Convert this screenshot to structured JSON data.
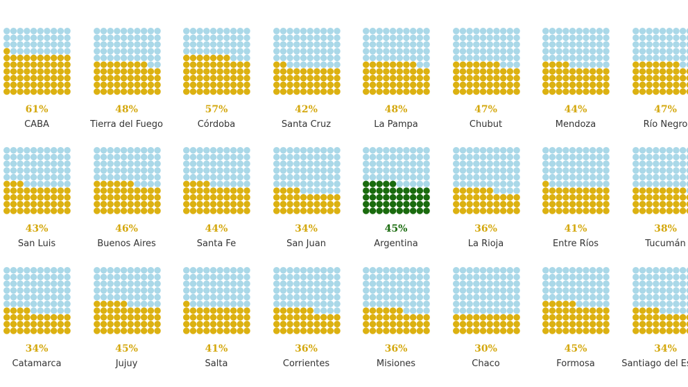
{
  "colors": {
    "empty": "#aad8e8",
    "filled": "#dcb111",
    "highlight": "#1a6b0e",
    "label_default": "#d4a80f",
    "label_highlight": "#1a6b0e",
    "name": "#333333"
  },
  "chart_data": {
    "type": "waffle",
    "grid": "10x10",
    "units": "percent",
    "title": "",
    "items": [
      {
        "name": "CABA",
        "value": 61,
        "label": "61%"
      },
      {
        "name": "Tierra del Fuego",
        "value": 48,
        "label": "48%"
      },
      {
        "name": "Córdoba",
        "value": 57,
        "label": "57%"
      },
      {
        "name": "Santa Cruz",
        "value": 42,
        "label": "42%"
      },
      {
        "name": "La Pampa",
        "value": 48,
        "label": "48%"
      },
      {
        "name": "Chubut",
        "value": 47,
        "label": "47%"
      },
      {
        "name": "Mendoza",
        "value": 44,
        "label": "44%"
      },
      {
        "name": "Río Negro",
        "value": 47,
        "label": "47%"
      },
      {
        "name": "San Luis",
        "value": 43,
        "label": "43%"
      },
      {
        "name": "Buenos Aires",
        "value": 46,
        "label": "46%"
      },
      {
        "name": "Santa Fe",
        "value": 44,
        "label": "44%"
      },
      {
        "name": "San Juan",
        "value": 34,
        "label": "34%"
      },
      {
        "name": "Argentina",
        "value": 45,
        "label": "45%",
        "highlight": true
      },
      {
        "name": "La Rioja",
        "value": 36,
        "label": "36%"
      },
      {
        "name": "Entre Ríos",
        "value": 41,
        "label": "41%"
      },
      {
        "name": "Tucumán",
        "value": 38,
        "label": "38%"
      },
      {
        "name": "Catamarca",
        "value": 34,
        "label": "34%"
      },
      {
        "name": "Jujuy",
        "value": 45,
        "label": "45%"
      },
      {
        "name": "Salta",
        "value": 41,
        "label": "41%"
      },
      {
        "name": "Corrientes",
        "value": 36,
        "label": "36%"
      },
      {
        "name": "Misiones",
        "value": 36,
        "label": "36%"
      },
      {
        "name": "Chaco",
        "value": 30,
        "label": "30%"
      },
      {
        "name": "Formosa",
        "value": 45,
        "label": "45%"
      },
      {
        "name": "Santiago del Estero",
        "value": 34,
        "label": "34%"
      }
    ]
  }
}
